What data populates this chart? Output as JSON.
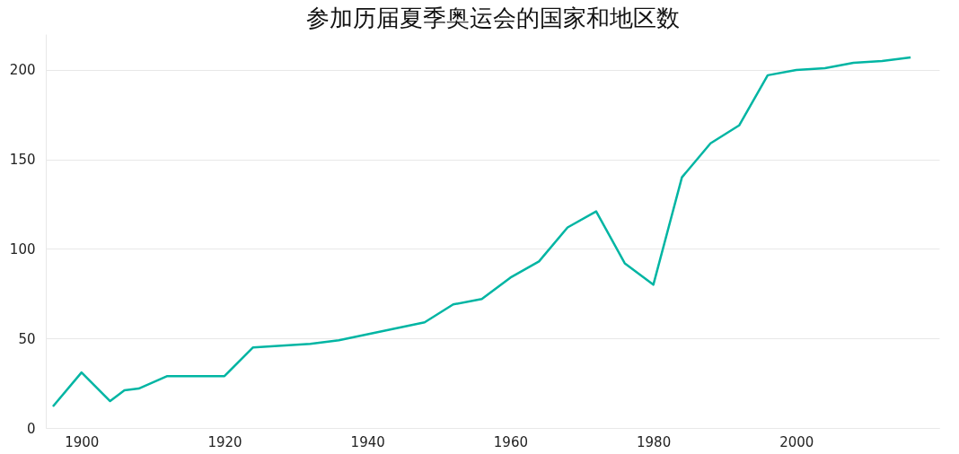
{
  "chart_data": {
    "type": "line",
    "title": "参加历届夏季奥运会的国家和地区数",
    "x": [
      1896,
      1900,
      1904,
      1906,
      1908,
      1912,
      1920,
      1924,
      1928,
      1932,
      1936,
      1948,
      1952,
      1956,
      1960,
      1964,
      1968,
      1972,
      1976,
      1980,
      1984,
      1988,
      1992,
      1996,
      2000,
      2004,
      2008,
      2012,
      2016
    ],
    "series": [
      {
        "color": "#00b5a3",
        "values": [
          12,
          31,
          15,
          21,
          22,
          29,
          29,
          45,
          46,
          47,
          49,
          59,
          69,
          72,
          84,
          93,
          112,
          121,
          92,
          80,
          140,
          159,
          169,
          197,
          200,
          201,
          204,
          205,
          207
        ]
      }
    ],
    "xlim": [
      1895,
      2020
    ],
    "xticks": [
      1900,
      1920,
      1940,
      1960,
      1980,
      2000
    ],
    "ylim": [
      0,
      220
    ],
    "yticks": [
      0,
      50,
      100,
      150,
      200
    ],
    "grid": "y",
    "marker": "none",
    "line_style": "solid"
  }
}
